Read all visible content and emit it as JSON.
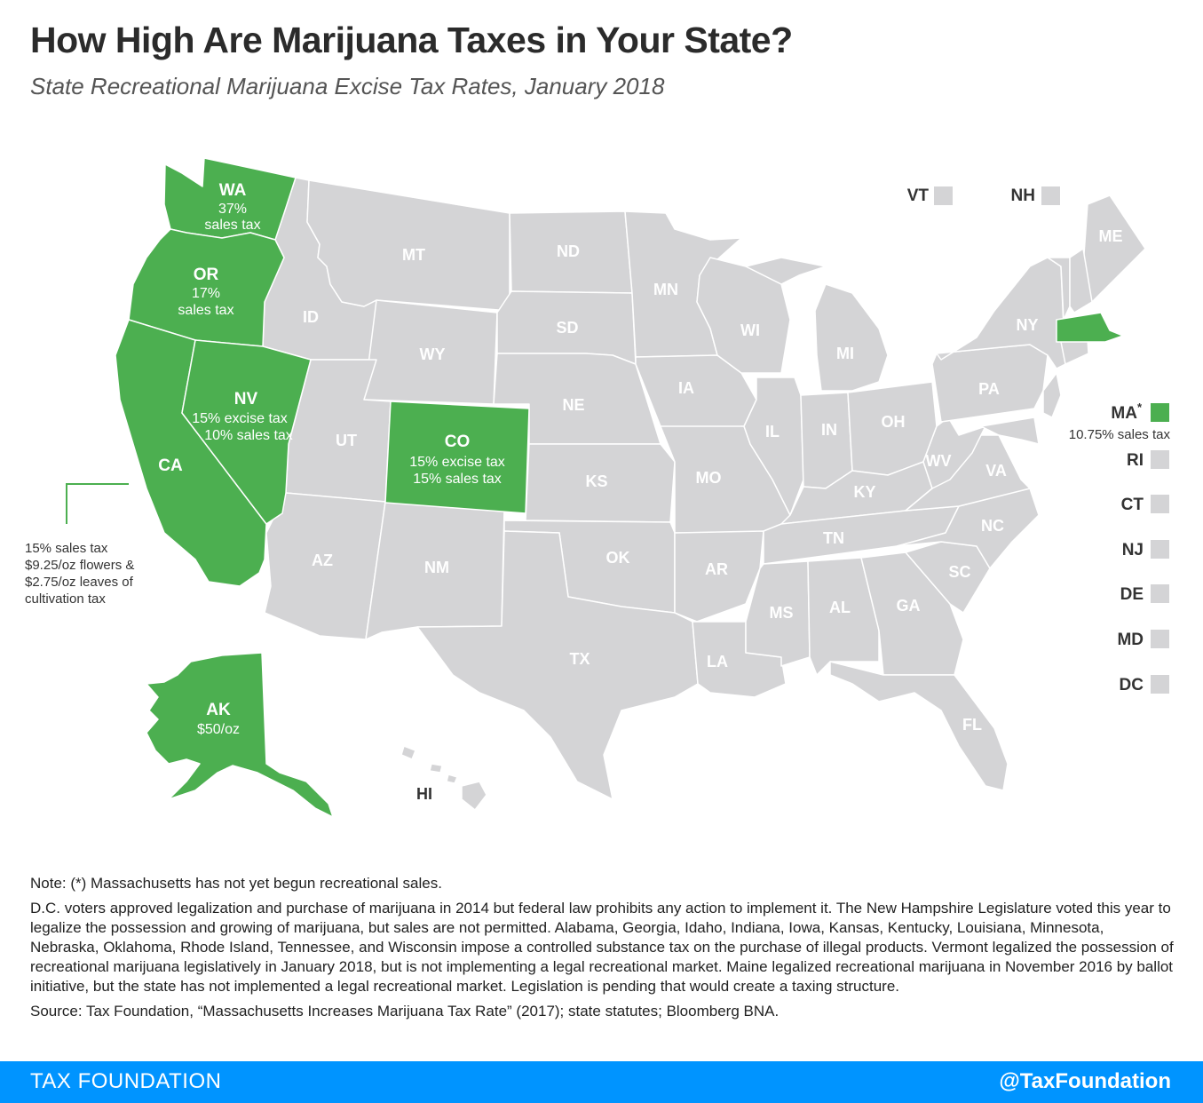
{
  "title": "How High Are Marijuana Taxes in Your State?",
  "subtitle": "State Recreational Marijuana Excise Tax Rates, January 2018",
  "colors": {
    "taxed": "#4caf50",
    "untaxed": "#d4d4d6",
    "border": "#ffffff",
    "brand": "#0094ff"
  },
  "states": {
    "WA": {
      "name": "WA",
      "tax_lines": [
        "37%",
        "sales tax"
      ]
    },
    "OR": {
      "name": "OR",
      "tax_lines": [
        "17%",
        "sales tax"
      ]
    },
    "NV": {
      "name": "NV",
      "tax_lines": [
        "15% excise tax",
        "10% sales tax"
      ]
    },
    "CA": {
      "name": "CA",
      "tax_lines": []
    },
    "CO": {
      "name": "CO",
      "tax_lines": [
        "15% excise tax",
        "15% sales tax"
      ]
    },
    "AK": {
      "name": "AK",
      "tax_lines": [
        "$50/oz"
      ]
    },
    "MA": {
      "name": "MA",
      "marker": "*",
      "tax_lines": [
        "10.75% sales tax"
      ]
    }
  },
  "ca_note": [
    "15% sales tax",
    "$9.25/oz flowers &",
    "$2.75/oz leaves of",
    "cultivation tax"
  ],
  "untaxed_labels": [
    "MT",
    "ND",
    "MN",
    "ID",
    "SD",
    "WY",
    "WI",
    "MI",
    "NY",
    "ME",
    "IA",
    "NE",
    "UT",
    "IL",
    "IN",
    "OH",
    "PA",
    "KS",
    "MO",
    "WV",
    "VA",
    "KY",
    "AZ",
    "NM",
    "OK",
    "TN",
    "NC",
    "AR",
    "SC",
    "AL",
    "GA",
    "MS",
    "TX",
    "LA",
    "FL",
    "HI"
  ],
  "small_states_top": [
    "VT",
    "NH"
  ],
  "small_states_side": [
    "RI",
    "CT",
    "NJ",
    "DE",
    "MD",
    "DC"
  ],
  "notes": {
    "note1": "Note: (*) Massachusetts has not yet begun recreational sales.",
    "note2": "D.C. voters approved legalization and purchase of marijuana in 2014 but federal law prohibits any action to implement it. The New Hampshire Legislature voted this year to legalize the possession and growing of marijuana, but sales are not permitted. Alabama, Georgia, Idaho, Indiana, Iowa, Kansas, Kentucky, Louisiana, Minnesota, Nebraska, Oklahoma, Rhode Island, Tennessee, and Wisconsin impose a controlled substance tax on the purchase of illegal products. Vermont legalized the possession of recreational marijuana legislatively in January 2018, but is not implementing a legal recreational market. Maine legalized recreational marijuana in November 2016 by ballot initiative, but the state has not implemented a legal recreational market. Legislation is pending that would create a taxing structure.",
    "source": "Source: Tax Foundation, “Massachusetts Increases Marijuana Tax Rate” (2017); state statutes; Bloomberg BNA."
  },
  "footer": {
    "brand": "TAX FOUNDATION",
    "handle": "@TaxFoundation"
  }
}
